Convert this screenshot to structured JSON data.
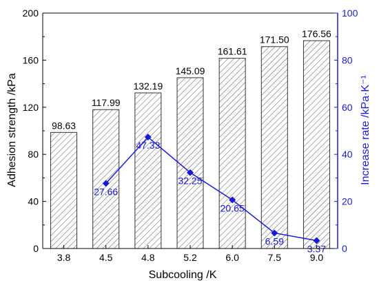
{
  "chart_data": {
    "type": "bar",
    "categories": [
      "3.8",
      "4.5",
      "4.8",
      "5.2",
      "6.0",
      "7.5",
      "9.0"
    ],
    "xlabel": "Subcooling /K",
    "ylabel_left": "Adhesion strength /kPa",
    "ylabel_right": "Increase rate /kPa·K⁻¹",
    "ylim_left": [
      0,
      200
    ],
    "yticks_left": [
      0,
      40,
      80,
      120,
      160,
      200
    ],
    "ylim_right": [
      0,
      100
    ],
    "yticks_right": [
      0,
      20,
      40,
      60,
      80,
      100
    ],
    "grid": false,
    "series": [
      {
        "axis": "left",
        "type": "bar",
        "pattern": "diagonal-hatch",
        "values": [
          98.63,
          117.99,
          132.19,
          145.09,
          161.61,
          171.5,
          176.56
        ],
        "labels": [
          "98.63",
          "117.99",
          "132.19",
          "145.09",
          "161.61",
          "171.50",
          "176.56"
        ]
      },
      {
        "axis": "right",
        "type": "line",
        "marker": "diamond",
        "x": [
          "4.5",
          "4.8",
          "5.2",
          "6.0",
          "7.5",
          "9.0"
        ],
        "values": [
          27.66,
          47.33,
          32.25,
          20.65,
          6.59,
          3.37
        ],
        "labels": [
          "27.66",
          "47.33",
          "32.25",
          "20.65",
          "6.59",
          "3.37"
        ]
      }
    ],
    "colors": {
      "bars_stroke": "#333333",
      "bars_hatch": "#555555",
      "line": "#1a1ad6",
      "right_axis": "#1a1ad6"
    }
  }
}
